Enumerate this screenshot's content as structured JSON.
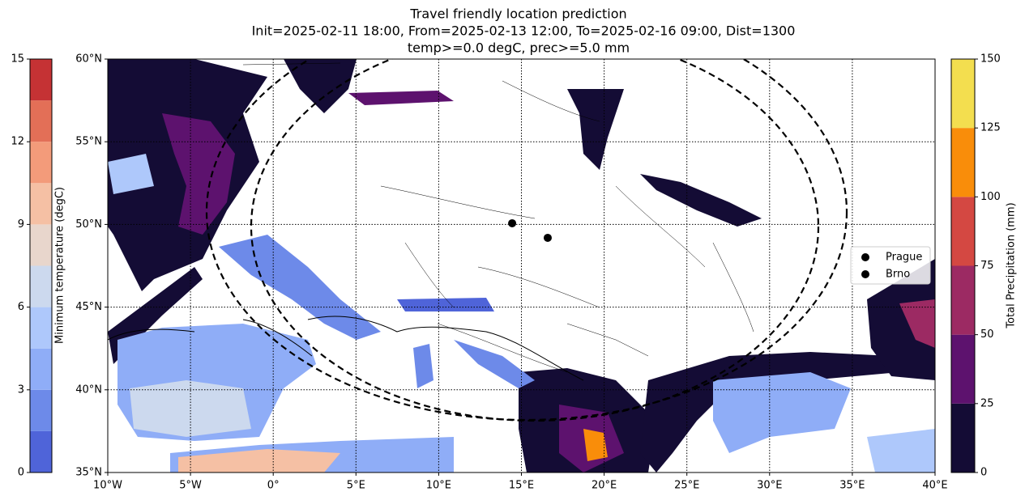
{
  "title": [
    "Travel friendly location prediction",
    "Init=2025-02-11 18:00, From=2025-02-13 12:00, To=2025-02-16 09:00, Dist=1300",
    "temp>=0.0 degC, prec>=5.0 mm"
  ],
  "map": {
    "xlim": [
      -10,
      40
    ],
    "ylim": [
      35,
      60
    ],
    "grid": true,
    "xticks": [
      {
        "value": -10,
        "label": "10°W"
      },
      {
        "value": -5,
        "label": "5°W"
      },
      {
        "value": 0,
        "label": "0°"
      },
      {
        "value": 5,
        "label": "5°E"
      },
      {
        "value": 10,
        "label": "10°E"
      },
      {
        "value": 15,
        "label": "15°E"
      },
      {
        "value": 20,
        "label": "20°E"
      },
      {
        "value": 25,
        "label": "25°E"
      },
      {
        "value": 30,
        "label": "30°E"
      },
      {
        "value": 35,
        "label": "35°E"
      },
      {
        "value": 40,
        "label": "40°E"
      }
    ],
    "yticks": [
      {
        "value": 35,
        "label": "35°N"
      },
      {
        "value": 40,
        "label": "40°N"
      },
      {
        "value": 45,
        "label": "45°N"
      },
      {
        "value": 50,
        "label": "50°N"
      },
      {
        "value": 55,
        "label": "55°N"
      },
      {
        "value": 60,
        "label": "60°N"
      }
    ],
    "points": [
      {
        "name": "Prague",
        "lon": 14.44,
        "lat": 50.07,
        "color": "#000000"
      },
      {
        "name": "Brno",
        "lon": 16.59,
        "lat": 49.19,
        "color": "#000000"
      }
    ]
  },
  "colorbar_left": {
    "label": "Minimum temperature (degC)",
    "lim": [
      0,
      15
    ],
    "ticks": [
      0,
      3,
      6,
      9,
      12,
      15
    ],
    "levels": [
      0,
      1.5,
      3,
      4.5,
      6,
      7.5,
      9,
      10.5,
      12,
      13.5,
      15
    ],
    "colors": [
      "#4f64d9",
      "#6d8ae9",
      "#8fadf7",
      "#aec8fb",
      "#ccd9ee",
      "#e8d6cc",
      "#f5c0a4",
      "#f39b7a",
      "#e36f57",
      "#c53234"
    ]
  },
  "colorbar_right": {
    "label": "Total Precipitation (mm)",
    "lim": [
      0,
      150
    ],
    "ticks": [
      0,
      25,
      50,
      75,
      100,
      125,
      150
    ],
    "levels": [
      0,
      25,
      50,
      75,
      100,
      125,
      150
    ],
    "colors": [
      "#140c35",
      "#5d126e",
      "#9c2a63",
      "#d44842",
      "#f98d0a",
      "#f3de4f"
    ]
  }
}
